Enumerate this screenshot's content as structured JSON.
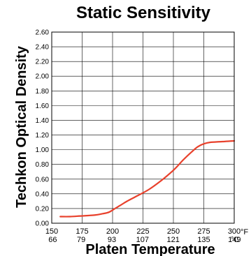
{
  "chart_data": {
    "type": "line",
    "title": "Static Sensitivity",
    "xlabel": "Platen Temperature",
    "ylabel": "Techkon Optical Density",
    "xlim": [
      150,
      300
    ],
    "ylim": [
      0,
      2.6
    ],
    "grid": true,
    "x_unit": "°F",
    "c_unit": "°C",
    "x_ticks": [
      "150",
      "175",
      "200",
      "225",
      "250",
      "275",
      "300"
    ],
    "x_tick_values": [
      150,
      175,
      200,
      225,
      250,
      275,
      300
    ],
    "c_ticks": [
      "66",
      "79",
      "93",
      "107",
      "121",
      "135",
      "149"
    ],
    "c_tick_f_values": [
      150.8,
      174.2,
      199.4,
      224.6,
      249.8,
      275,
      300.2
    ],
    "y_ticks": [
      "0.00",
      "0.20",
      "0.40",
      "0.60",
      "0.80",
      "1.00",
      "1.20",
      "1.40",
      "1.60",
      "1.80",
      "2.00",
      "2.20",
      "2.40",
      "2.60"
    ],
    "y_tick_values": [
      0,
      0.2,
      0.4,
      0.6,
      0.8,
      1.0,
      1.2,
      1.4,
      1.6,
      1.8,
      2.0,
      2.2,
      2.4,
      2.6
    ],
    "series": [
      {
        "color": "#e8412c",
        "x": [
          157,
          165,
          175,
          185,
          192,
          197,
          202,
          207,
          212,
          220,
          230,
          240,
          250,
          258,
          265,
          270,
          275,
          280,
          290,
          300
        ],
        "y": [
          0.09,
          0.09,
          0.1,
          0.11,
          0.13,
          0.15,
          0.2,
          0.25,
          0.3,
          0.37,
          0.46,
          0.58,
          0.72,
          0.86,
          0.97,
          1.04,
          1.08,
          1.1,
          1.11,
          1.12
        ]
      }
    ]
  }
}
